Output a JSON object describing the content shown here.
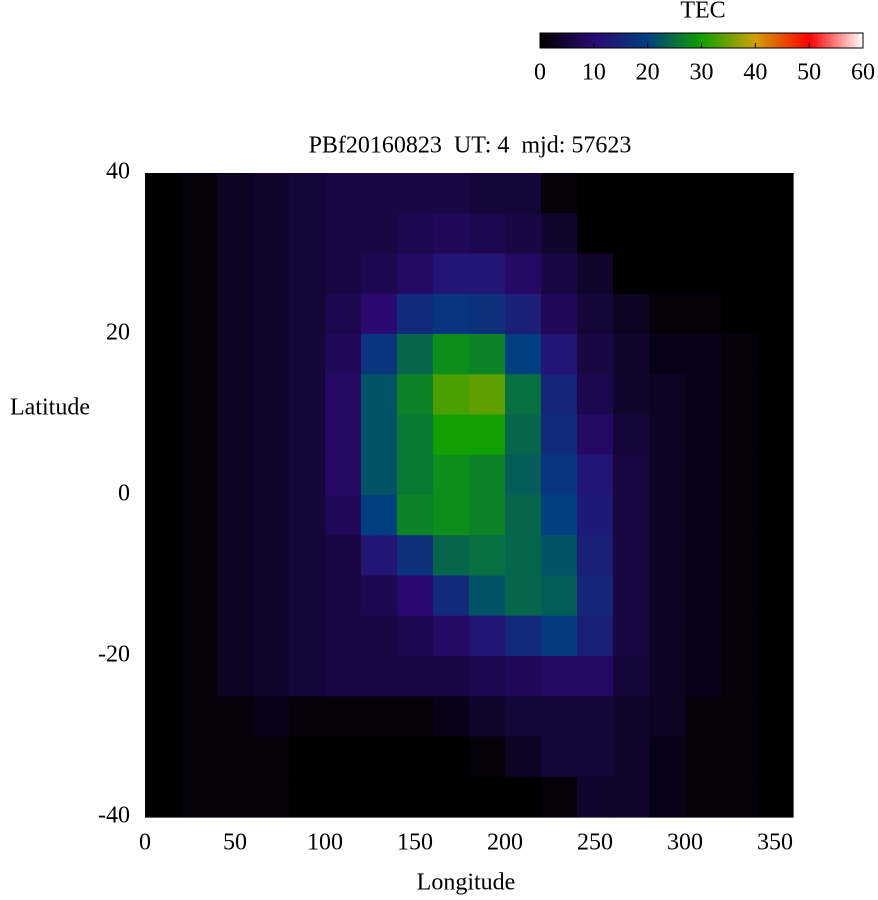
{
  "chart_data": {
    "type": "heatmap",
    "title": "PBf20160823  UT: 4  mjd: 57623",
    "x_label": "Longitude",
    "y_label": "Latitude",
    "colorbar_label": "TEC",
    "xlim": [
      0,
      360
    ],
    "xticks": [
      0,
      50,
      100,
      150,
      200,
      250,
      300,
      350
    ],
    "ylim": [
      -40,
      40
    ],
    "yticks": [
      -40,
      -20,
      0,
      20,
      40
    ],
    "zlim": [
      0,
      60
    ],
    "zticks": [
      0,
      10,
      20,
      30,
      40,
      50,
      60
    ],
    "colormap": [
      "#000000",
      "#2a0a70",
      "#004080",
      "#10a000",
      "#d0a000",
      "#ff0000",
      "#ffffff"
    ],
    "x": [
      10,
      30,
      50,
      70,
      90,
      110,
      130,
      150,
      170,
      190,
      210,
      230,
      250,
      270,
      290,
      310,
      330,
      350
    ],
    "y": [
      37.5,
      32.5,
      27.5,
      22.5,
      17.5,
      12.5,
      7.5,
      2.5,
      -2.5,
      -7.5,
      -12.5,
      -17.5,
      -22.5,
      -27.5,
      -32.5,
      -37.5
    ],
    "z": [
      [
        0,
        1,
        3,
        4,
        5,
        6,
        6,
        6,
        6,
        5,
        5,
        1,
        0,
        0,
        0,
        0,
        0,
        0
      ],
      [
        0,
        1,
        3,
        4,
        5,
        6,
        6,
        7,
        8,
        7,
        6,
        4,
        0,
        0,
        0,
        0,
        0,
        0
      ],
      [
        0,
        1,
        3,
        4,
        5,
        6,
        7,
        9,
        12,
        12,
        9,
        6,
        4,
        0,
        0,
        0,
        0,
        0
      ],
      [
        0,
        1,
        3,
        4,
        5,
        7,
        10,
        16,
        18,
        17,
        14,
        8,
        5,
        3,
        1,
        1,
        0,
        0
      ],
      [
        0,
        1,
        3,
        4,
        5,
        8,
        18,
        24,
        28,
        27,
        20,
        12,
        6,
        4,
        2,
        2,
        1,
        0
      ],
      [
        0,
        1,
        3,
        4,
        5,
        9,
        22,
        27,
        33,
        34,
        25,
        15,
        7,
        4,
        3,
        2,
        1,
        0
      ],
      [
        0,
        1,
        3,
        4,
        5,
        9,
        22,
        26,
        30,
        30,
        24,
        16,
        9,
        5,
        3,
        2,
        1,
        0
      ],
      [
        0,
        1,
        3,
        4,
        5,
        9,
        22,
        26,
        28,
        27,
        23,
        18,
        12,
        6,
        3,
        2,
        1,
        0
      ],
      [
        0,
        1,
        3,
        4,
        5,
        8,
        20,
        27,
        28,
        27,
        24,
        20,
        13,
        6,
        3,
        2,
        1,
        0
      ],
      [
        0,
        1,
        3,
        4,
        5,
        6,
        12,
        17,
        24,
        25,
        24,
        22,
        14,
        6,
        3,
        2,
        1,
        0
      ],
      [
        0,
        1,
        3,
        4,
        5,
        6,
        7,
        10,
        16,
        22,
        24,
        23,
        15,
        6,
        3,
        2,
        1,
        0
      ],
      [
        0,
        1,
        3,
        4,
        5,
        6,
        6,
        7,
        9,
        12,
        16,
        19,
        14,
        6,
        3,
        2,
        1,
        0
      ],
      [
        0,
        1,
        3,
        4,
        5,
        6,
        6,
        6,
        6,
        7,
        8,
        9,
        9,
        5,
        3,
        2,
        1,
        0
      ],
      [
        0,
        1,
        1,
        2,
        1,
        1,
        1,
        1,
        2,
        4,
        5,
        5,
        5,
        4,
        3,
        1,
        1,
        0
      ],
      [
        0,
        1,
        1,
        1,
        0,
        0,
        0,
        0,
        0,
        1,
        3,
        5,
        5,
        4,
        2,
        1,
        1,
        0
      ],
      [
        0,
        1,
        1,
        1,
        0,
        0,
        0,
        0,
        0,
        0,
        0,
        1,
        4,
        4,
        2,
        1,
        1,
        0
      ]
    ]
  }
}
